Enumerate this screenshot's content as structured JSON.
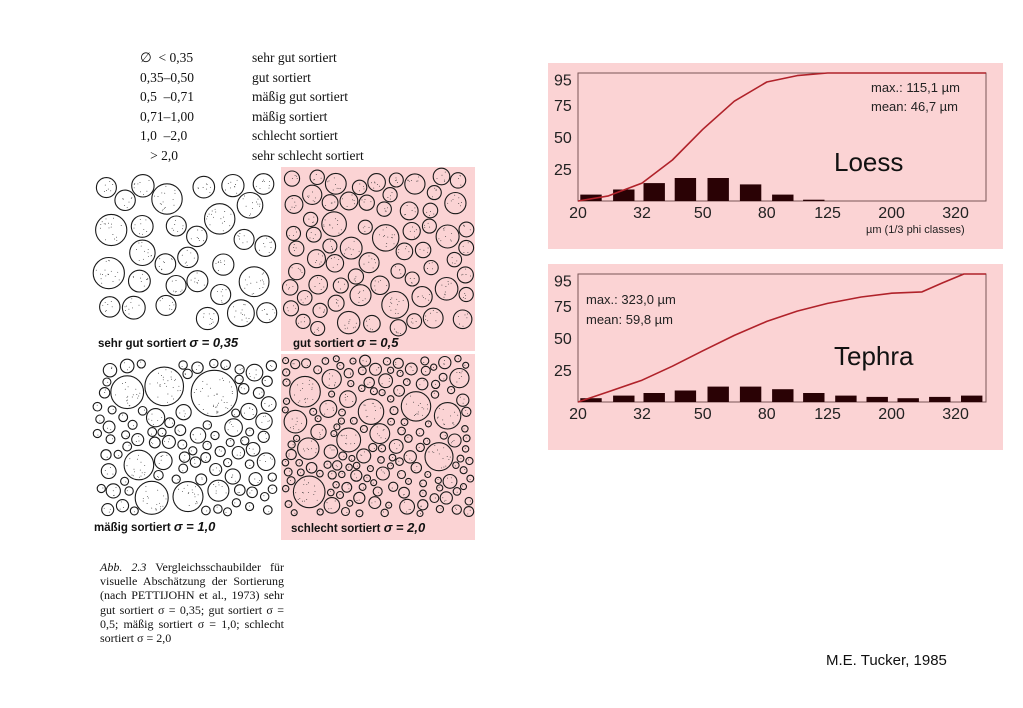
{
  "sorting_table": [
    {
      "range": "∅  < 0,35",
      "label": "sehr gut sortiert"
    },
    {
      "range": "0,35–0,50",
      "label": "gut sortiert"
    },
    {
      "range": "0,5  –0,71",
      "label": "mäßig gut sortiert"
    },
    {
      "range": "0,71–1,00",
      "label": "mäßig sortiert"
    },
    {
      "range": "1,0  –2,0",
      "label": "schlecht sortiert"
    },
    {
      "range": "   > 2,0",
      "label": "sehr schlecht sortiert"
    }
  ],
  "panels": [
    {
      "label": "sehr gut sortiert",
      "sigma": "σ = 0,35",
      "highlighted": false
    },
    {
      "label": "gut sortiert",
      "sigma": "σ = 0,5",
      "highlighted": true
    },
    {
      "label": "mäßig sortiert",
      "sigma": "σ = 1,0",
      "highlighted": false
    },
    {
      "label": "schlecht sortiert",
      "sigma": "σ = 2,0",
      "highlighted": true
    }
  ],
  "caption": {
    "figure_number": "Abb. 2.3",
    "text": "Vergleichsschaubilder für visuelle Abschätzung der Sortierung (nach PETTIJOHN et al., 1973) sehr gut sortiert σ = 0,35; gut sortiert σ = 0,5; mäßig sortiert σ = 1,0; schlecht sortiert σ = 2,0"
  },
  "colors": {
    "panel_highlight": "#fbd3d4",
    "curve": "#b0222a",
    "bar": "#2a0205"
  },
  "chart_data": [
    {
      "type": "bar",
      "title": "Loess",
      "stats": {
        "max": "max.: 115,1 µm",
        "mean": "mean: 46,7 µm"
      },
      "xlabel": "µm (1/3 phi classes)",
      "x_ticks": [
        "20",
        "32",
        "50",
        "80",
        "125",
        "200",
        "320"
      ],
      "y_ticks": [
        "95",
        "75",
        "50",
        "25"
      ],
      "ylim": [
        0,
        100
      ],
      "bars": {
        "x": [
          22,
          28,
          35,
          44,
          56,
          71,
          90,
          113
        ],
        "values": [
          5,
          9,
          14,
          18,
          18,
          13,
          5,
          1
        ]
      },
      "cumulative_curve": {
        "x": [
          20,
          25,
          32,
          40,
          50,
          63,
          80,
          100,
          125,
          400
        ],
        "y": [
          0,
          4,
          14,
          32,
          56,
          78,
          93,
          98,
          100,
          100
        ]
      }
    },
    {
      "type": "bar",
      "title": "Tephra",
      "stats": {
        "max": "max.: 323,0 µm",
        "mean": "mean: 59,8 µm"
      },
      "xlabel": "",
      "x_ticks": [
        "20",
        "32",
        "50",
        "80",
        "125",
        "200",
        "320"
      ],
      "y_ticks": [
        "95",
        "75",
        "50",
        "25"
      ],
      "ylim": [
        0,
        100
      ],
      "bars": {
        "x": [
          22,
          28,
          35,
          44,
          56,
          71,
          90,
          113,
          143,
          180,
          226,
          285,
          360
        ],
        "values": [
          3,
          5,
          7,
          9,
          12,
          12,
          10,
          7,
          5,
          4,
          3,
          4,
          5
        ]
      },
      "cumulative_curve": {
        "x": [
          20,
          25,
          32,
          40,
          50,
          63,
          80,
          100,
          125,
          160,
          200,
          250,
          290,
          340,
          400
        ],
        "y": [
          0,
          8,
          17,
          28,
          40,
          52,
          63,
          71,
          77,
          82,
          85,
          86,
          93,
          100,
          100
        ]
      }
    }
  ],
  "credit": "M.E. Tucker, 1985"
}
